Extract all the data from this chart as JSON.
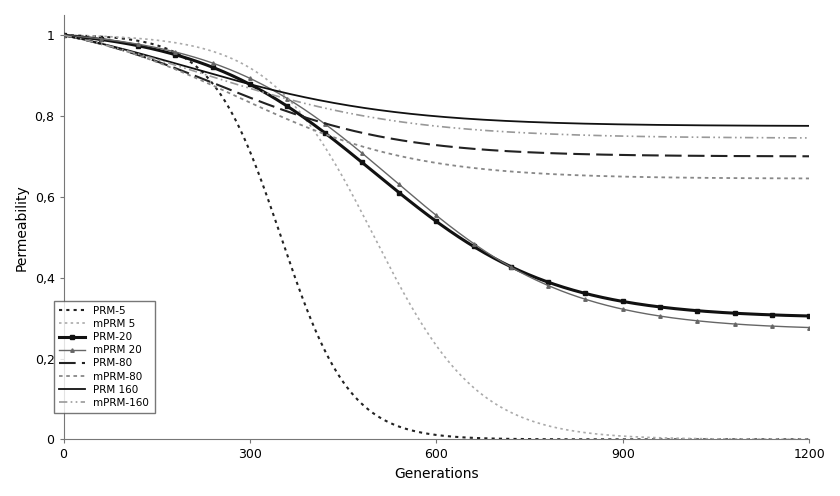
{
  "title": "",
  "xlabel": "Generations",
  "ylabel": "Permeability",
  "xlim": [
    0,
    1200
  ],
  "ylim": [
    0,
    1.05
  ],
  "yticks": [
    0,
    0.2,
    0.4,
    0.6,
    0.8,
    1.0
  ],
  "ytick_labels": [
    "0",
    "0,2",
    "0,4",
    "0,6",
    "0,8",
    "1"
  ],
  "xticks": [
    0,
    300,
    600,
    900,
    1200
  ],
  "background_color": "#ffffff",
  "legend_labels": [
    "PRM-5",
    "mPRM 5",
    "PRM-20",
    "mPRM 20",
    "PRM-80",
    "mPRM-80",
    "PRM 160",
    "mPRM-160"
  ],
  "legend_fontsize": 7.5,
  "axis_fontsize": 10,
  "tick_fontsize": 9
}
